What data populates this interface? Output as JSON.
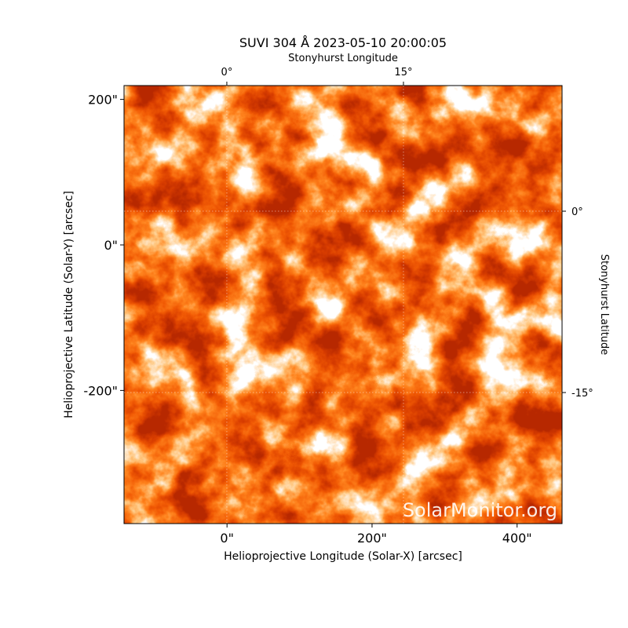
{
  "chart_data": {
    "type": "image",
    "title": "SUVI 304 Å 2023-05-10 20:00:05",
    "xlabel": "Helioprojective Longitude (Solar-X) [arcsec]",
    "ylabel": "Helioprojective Latitude (Solar-Y) [arcsec]",
    "x2label": "Stonyhurst Longitude",
    "y2label": "Stonyhurst Latitude",
    "xlim": [
      -142,
      462
    ],
    "ylim": [
      -383,
      219
    ],
    "xticks": [
      {
        "value": 0,
        "label": "0\""
      },
      {
        "value": 200,
        "label": "200\""
      },
      {
        "value": 400,
        "label": "400\""
      }
    ],
    "yticks": [
      {
        "value": 200,
        "label": "200\""
      },
      {
        "value": 0,
        "label": "0\""
      },
      {
        "value": -200,
        "label": "-200\""
      }
    ],
    "x2lim": [
      -8.73,
      28.47
    ],
    "x2ticks": [
      {
        "value": 0,
        "label": "0°"
      },
      {
        "value": 15,
        "label": "15°"
      }
    ],
    "y2lim": [
      -25.84,
      10.39
    ],
    "y2ticks": [
      {
        "value": 0,
        "label": "0°"
      },
      {
        "value": -15,
        "label": "-15°"
      }
    ],
    "grid": true,
    "annotation": "SolarMonitor.org"
  }
}
